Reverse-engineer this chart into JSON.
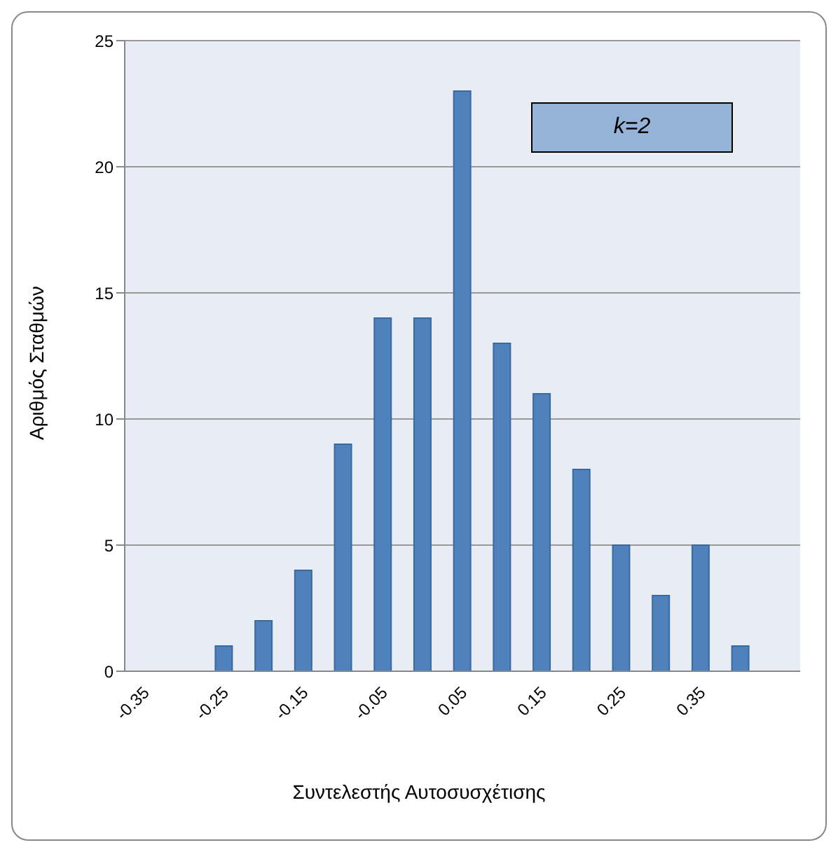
{
  "chart_data": {
    "type": "bar",
    "xlabel": "Συντελεστής Αυτοσυσχέτισης",
    "ylabel": "Αριθμός Σταθμών",
    "categories": [
      "-0.35",
      null,
      "-0.25",
      null,
      "-0.15",
      null,
      "-0.05",
      null,
      "0.05",
      null,
      "0.15",
      null,
      "0.25",
      null,
      "0.35",
      null,
      null
    ],
    "values": [
      0,
      0,
      1,
      2,
      4,
      9,
      14,
      14,
      23,
      13,
      11,
      8,
      5,
      3,
      5,
      1,
      0
    ],
    "color": "#4f81bd",
    "ylim": [
      0,
      25
    ],
    "yticks": [
      0,
      5,
      10,
      15,
      20,
      25
    ],
    "grid": "y",
    "annotations": [
      "k=2"
    ]
  }
}
